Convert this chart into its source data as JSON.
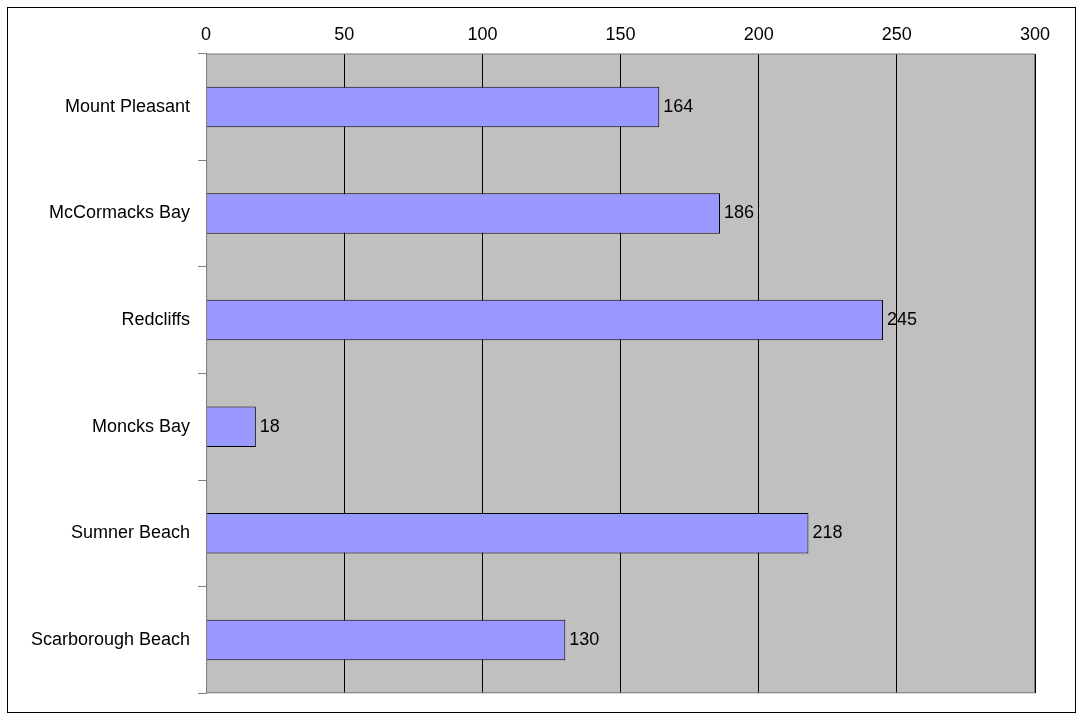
{
  "chart_data": {
    "type": "bar",
    "orientation": "horizontal",
    "categories": [
      "Mount Pleasant",
      "McCormacks Bay",
      "Redcliffs",
      "Moncks Bay",
      "Sumner Beach",
      "Scarborough Beach"
    ],
    "values": [
      164,
      186,
      245,
      18,
      218,
      130
    ],
    "color": "#9999ff",
    "xlim": [
      0,
      300
    ],
    "xticks": [
      0,
      50,
      100,
      150,
      200,
      250,
      300
    ],
    "grid": "x",
    "legend": false,
    "data_labels": true
  }
}
